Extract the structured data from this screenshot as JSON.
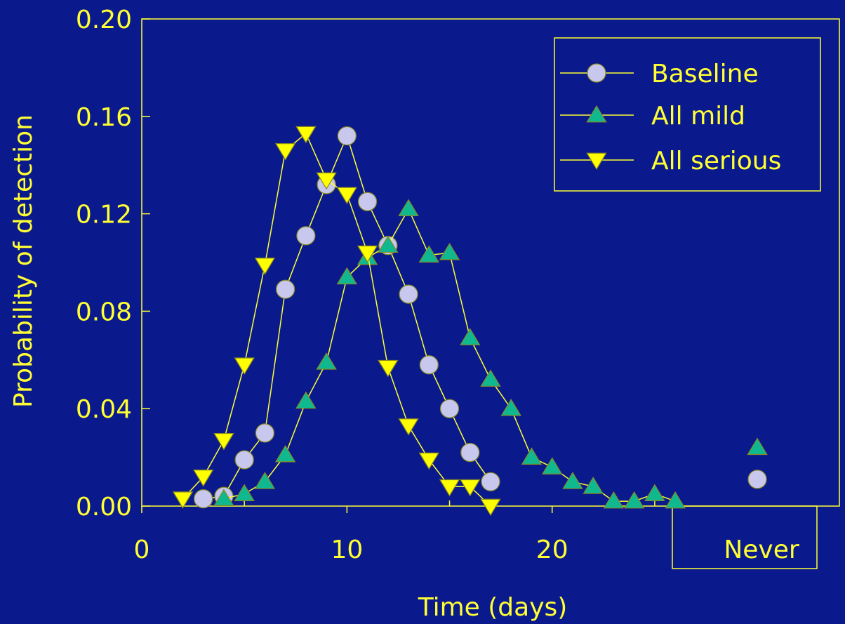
{
  "chart_data": {
    "type": "line",
    "xlabel": "Time (days)",
    "ylabel": "Probability of detection",
    "xlim": [
      0,
      34
    ],
    "ylim": [
      0,
      0.2
    ],
    "x_ticks": [
      {
        "value": 0,
        "label": "0"
      },
      {
        "value": 10,
        "label": "10"
      },
      {
        "value": 20,
        "label": "20"
      }
    ],
    "y_ticks": [
      {
        "value": 0,
        "label": "0.00"
      },
      {
        "value": 0.04,
        "label": "0.04"
      },
      {
        "value": 0.08,
        "label": "0.08"
      },
      {
        "value": 0.12,
        "label": "0.12"
      },
      {
        "value": 0.16,
        "label": "0.16"
      },
      {
        "value": 0.2,
        "label": "0.20"
      }
    ],
    "never_label": "Never",
    "never_x": 30,
    "legend_position": "top-right",
    "grid": false,
    "colors": {
      "background": "#0a1a8c",
      "axis": "#ffff33",
      "line": "#ffff33",
      "baseline_marker": "#c8c8ee",
      "mild_marker": "#10b890",
      "serious_marker": "#ffff00",
      "marker_stroke": "#8a8a20"
    },
    "series": [
      {
        "name": "Baseline",
        "marker": "circle",
        "points": [
          [
            3,
            0.003
          ],
          [
            4,
            0.004
          ],
          [
            5,
            0.019
          ],
          [
            6,
            0.03
          ],
          [
            7,
            0.089
          ],
          [
            8,
            0.111
          ],
          [
            9,
            0.132
          ],
          [
            10,
            0.152
          ],
          [
            11,
            0.125
          ],
          [
            12,
            0.107
          ],
          [
            13,
            0.087
          ],
          [
            14,
            0.058
          ],
          [
            15,
            0.04
          ],
          [
            16,
            0.022
          ],
          [
            17,
            0.01
          ]
        ],
        "never_value": 0.011
      },
      {
        "name": "All mild",
        "marker": "triangle-up",
        "points": [
          [
            4,
            0.003
          ],
          [
            5,
            0.005
          ],
          [
            6,
            0.01
          ],
          [
            7,
            0.021
          ],
          [
            8,
            0.043
          ],
          [
            9,
            0.059
          ],
          [
            10,
            0.094
          ],
          [
            11,
            0.102
          ],
          [
            12,
            0.107
          ],
          [
            13,
            0.122
          ],
          [
            14,
            0.103
          ],
          [
            15,
            0.104
          ],
          [
            16,
            0.069
          ],
          [
            17,
            0.052
          ],
          [
            18,
            0.04
          ],
          [
            19,
            0.02
          ],
          [
            20,
            0.016
          ],
          [
            21,
            0.01
          ],
          [
            22,
            0.008
          ],
          [
            23,
            0.002
          ],
          [
            24,
            0.002
          ],
          [
            25,
            0.005
          ],
          [
            26,
            0.002
          ]
        ],
        "never_value": 0.024
      },
      {
        "name": "All serious",
        "marker": "triangle-down",
        "points": [
          [
            2,
            0.003
          ],
          [
            3,
            0.012
          ],
          [
            4,
            0.027
          ],
          [
            5,
            0.058
          ],
          [
            6,
            0.099
          ],
          [
            7,
            0.146
          ],
          [
            8,
            0.153
          ],
          [
            9,
            0.134
          ],
          [
            10,
            0.128
          ],
          [
            11,
            0.104
          ],
          [
            12,
            0.057
          ],
          [
            13,
            0.033
          ],
          [
            14,
            0.019
          ],
          [
            15,
            0.008
          ],
          [
            16,
            0.008
          ],
          [
            17,
            0.0
          ]
        ]
      }
    ]
  }
}
